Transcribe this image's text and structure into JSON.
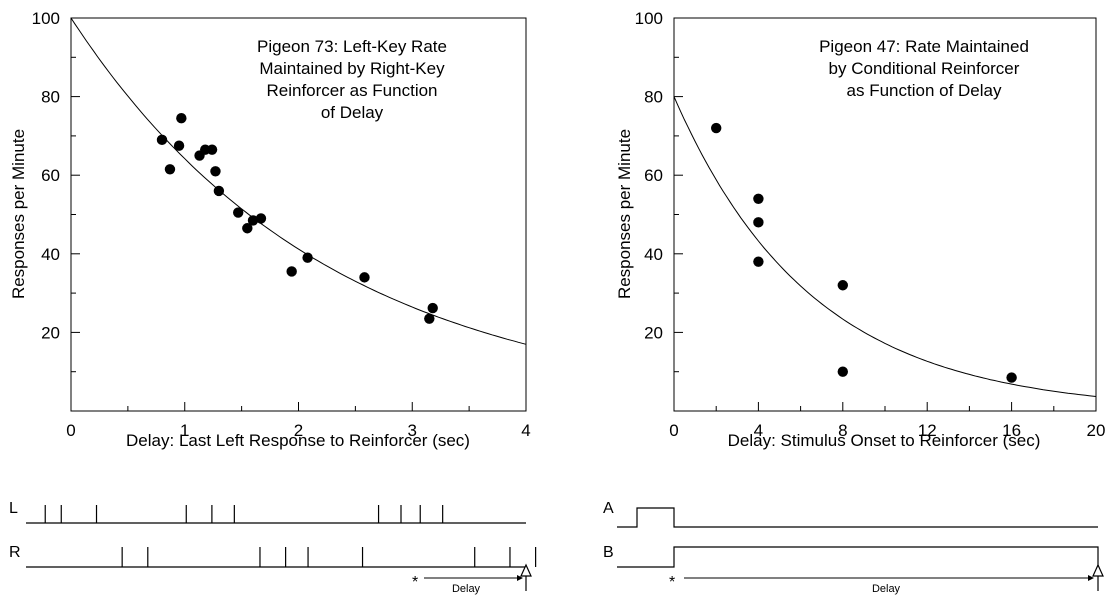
{
  "chart_data": [
    {
      "type": "scatter",
      "annotation_lines": [
        "Pigeon 73:  Left-Key Rate",
        "Maintained by Right-Key",
        "Reinforcer as Function",
        "of Delay"
      ],
      "xlabel": "Delay: Last Left Response to Reinforcer (sec)",
      "ylabel": "Responses per Minute",
      "xlim": [
        0,
        4
      ],
      "ylim": [
        0,
        100
      ],
      "x_ticks": [
        0,
        1,
        2,
        3,
        4
      ],
      "y_ticks": [
        20,
        40,
        60,
        80,
        100
      ],
      "grid": false,
      "points": [
        {
          "x": 0.8,
          "y": 69
        },
        {
          "x": 0.87,
          "y": 61.5
        },
        {
          "x": 0.95,
          "y": 67.5
        },
        {
          "x": 0.97,
          "y": 74.5
        },
        {
          "x": 1.13,
          "y": 65
        },
        {
          "x": 1.18,
          "y": 66.5
        },
        {
          "x": 1.24,
          "y": 66.5
        },
        {
          "x": 1.27,
          "y": 61
        },
        {
          "x": 1.3,
          "y": 56
        },
        {
          "x": 1.47,
          "y": 50.5
        },
        {
          "x": 1.55,
          "y": 46.5
        },
        {
          "x": 1.6,
          "y": 48.5
        },
        {
          "x": 1.67,
          "y": 49
        },
        {
          "x": 1.94,
          "y": 35.5
        },
        {
          "x": 2.08,
          "y": 39
        },
        {
          "x": 2.58,
          "y": 34
        },
        {
          "x": 3.15,
          "y": 23.5
        },
        {
          "x": 3.18,
          "y": 26.2
        }
      ],
      "fit_curve": {
        "a": 100,
        "b": 0.4433
      }
    },
    {
      "type": "scatter",
      "annotation_lines": [
        "Pigeon 47: Rate Maintained",
        "by Conditional Reinforcer",
        "as Function of Delay"
      ],
      "xlabel": "Delay: Stimulus Onset to Reinforcer (sec)",
      "ylabel": "Responses per Minute",
      "xlim": [
        0,
        20
      ],
      "ylim": [
        0,
        100
      ],
      "x_ticks": [
        0,
        4,
        8,
        12,
        16,
        20
      ],
      "y_ticks": [
        20,
        40,
        60,
        80,
        100
      ],
      "grid": false,
      "points": [
        {
          "x": 2,
          "y": 72
        },
        {
          "x": 4,
          "y": 54
        },
        {
          "x": 4,
          "y": 48
        },
        {
          "x": 4,
          "y": 38
        },
        {
          "x": 8,
          "y": 32
        },
        {
          "x": 8,
          "y": 10
        },
        {
          "x": 16,
          "y": 8.5
        }
      ],
      "fit_curve": {
        "a": 80,
        "b": 0.1537
      }
    }
  ],
  "left_diagram": {
    "row_labels": [
      "L",
      "R"
    ],
    "marker": "*",
    "delay_label": "Delay",
    "left_responses": [
      0.06,
      0.11,
      0.22,
      0.5,
      0.58,
      0.65,
      1.1,
      1.17,
      1.23,
      1.3
    ],
    "right_responses": [
      0.3,
      0.38,
      0.73,
      0.81,
      0.88,
      1.05,
      1.4,
      1.51,
      1.59
    ]
  },
  "right_diagram": {
    "row_labels": [
      "A",
      "B"
    ],
    "marker": "*",
    "delay_label": "Delay"
  }
}
